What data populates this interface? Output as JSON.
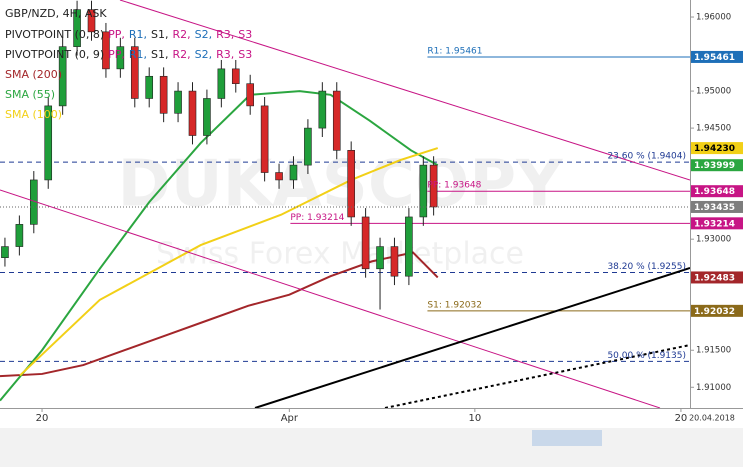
{
  "chart_data": {
    "type": "candlestick",
    "title": "GBP/NZD, 4H, ASK",
    "legend": [
      {
        "label": "PIVOTPOINT (0, 8)",
        "items": [
          {
            "text": "PP,",
            "color": "#c71585"
          },
          {
            "text": "R1,",
            "color": "#1e6fb8"
          },
          {
            "text": "S1,",
            "color": "#222222"
          },
          {
            "text": "R2,",
            "color": "#c71585"
          },
          {
            "text": "S2,",
            "color": "#1e6fb8"
          },
          {
            "text": "R3,",
            "color": "#c71585"
          },
          {
            "text": "S3",
            "color": "#c71585"
          }
        ]
      },
      {
        "label": "PIVOTPOINT (0, 9)",
        "items": [
          {
            "text": "PP,",
            "color": "#c71585"
          },
          {
            "text": "R1,",
            "color": "#1e6fb8"
          },
          {
            "text": "S1,",
            "color": "#222222"
          },
          {
            "text": "R2,",
            "color": "#c71585"
          },
          {
            "text": "S2,",
            "color": "#1e6fb8"
          },
          {
            "text": "R3,",
            "color": "#c71585"
          },
          {
            "text": "S3",
            "color": "#c71585"
          }
        ]
      }
    ],
    "watermark": [
      "DUKASCOPY",
      "Swiss Forex Marketplace"
    ],
    "date_label": "20.04.2018",
    "up_color": "#1f9e3a",
    "down_color": "#d62828",
    "x": [
      17.2,
      17.9,
      18.6,
      19.3,
      20.0,
      20.7,
      21.4,
      22.1,
      22.8,
      23.5,
      24.2,
      24.9,
      25.6,
      26.3,
      27.0,
      27.7,
      28.4,
      29.1,
      29.8,
      30.5,
      31.2,
      31.9,
      32.6,
      33.3,
      34.0,
      34.7,
      35.4,
      36.1,
      36.8,
      37.5,
      38.0
    ],
    "open": [
      1.9275,
      1.929,
      1.932,
      1.938,
      1.948,
      1.956,
      1.961,
      1.958,
      1.953,
      1.956,
      1.949,
      1.952,
      1.947,
      1.95,
      1.944,
      1.949,
      1.953,
      1.951,
      1.948,
      1.939,
      1.938,
      1.94,
      1.945,
      1.95,
      1.942,
      1.933,
      1.926,
      1.929,
      1.925,
      1.933,
      1.94
    ],
    "high": [
      1.9302,
      1.9332,
      1.9392,
      1.9492,
      1.9572,
      1.9622,
      1.9622,
      1.9592,
      1.9572,
      1.9572,
      1.9532,
      1.9532,
      1.9512,
      1.9512,
      1.9502,
      1.9542,
      1.9542,
      1.9522,
      1.9492,
      1.9402,
      1.9412,
      1.9462,
      1.9512,
      1.9512,
      1.9432,
      1.9342,
      1.9302,
      1.9302,
      1.9342,
      1.9412,
      1.9412
    ],
    "low": [
      1.9263,
      1.9278,
      1.9308,
      1.9368,
      1.9468,
      1.9548,
      1.9568,
      1.9518,
      1.9518,
      1.9478,
      1.9478,
      1.9458,
      1.9458,
      1.9428,
      1.9428,
      1.9478,
      1.9498,
      1.9468,
      1.9378,
      1.9368,
      1.9368,
      1.9388,
      1.9438,
      1.9408,
      1.9318,
      1.9248,
      1.9205,
      1.9238,
      1.9238,
      1.9318,
      1.9332
    ],
    "close": [
      1.929,
      1.932,
      1.938,
      1.948,
      1.956,
      1.961,
      1.958,
      1.953,
      1.956,
      1.949,
      1.952,
      1.947,
      1.95,
      1.944,
      1.949,
      1.953,
      1.951,
      1.948,
      1.939,
      1.938,
      1.94,
      1.945,
      1.95,
      1.942,
      1.933,
      1.926,
      1.929,
      1.925,
      1.933,
      1.94,
      1.93435
    ],
    "last_price": {
      "value": 1.93435,
      "label": "1.93435"
    },
    "series": [
      {
        "name": "SMA (200)",
        "color": "#a3262a",
        "x": [
          16.96,
          19,
          21,
          23,
          25,
          27,
          29,
          31,
          33,
          35,
          37,
          38.2
        ],
        "values": [
          1.9115,
          1.9118,
          1.913,
          1.915,
          1.917,
          1.919,
          1.921,
          1.9225,
          1.925,
          1.927,
          1.9282,
          1.92483
        ],
        "tag": "1.92483"
      },
      {
        "name": "SMA (55)",
        "color": "#2ba640",
        "x": [
          16.96,
          19,
          21.8,
          24.2,
          26.7,
          29.1,
          31.5,
          33,
          34.9,
          36.9,
          38.2
        ],
        "values": [
          1.9082,
          1.915,
          1.926,
          1.935,
          1.943,
          1.9495,
          1.95,
          1.9495,
          1.946,
          1.942,
          1.93999
        ],
        "tag": "1.93999"
      },
      {
        "name": "SMA (100)",
        "color": "#f2d017",
        "x": [
          17.93,
          21.8,
          26.7,
          30.6,
          34,
          36.4,
          38.2
        ],
        "values": [
          1.9116,
          1.9218,
          1.9292,
          1.9333,
          1.938,
          1.9407,
          1.9423
        ],
        "tag": "1.94230"
      }
    ],
    "levels": [
      {
        "label": "R1: 1.95461",
        "value": 1.95461,
        "tag": "1.95461",
        "color": "#1e6fb8",
        "from": 37.7,
        "dashed": false
      },
      {
        "label": "PP: 1.93648",
        "value": 1.93648,
        "tag": "1.93648",
        "color": "#c71585",
        "from": 37.7,
        "dashed": false
      },
      {
        "label": "PP: 1.93214",
        "value": 1.93214,
        "tag": "1.93214",
        "color": "#c71585",
        "from": 31.05,
        "dashed": false
      },
      {
        "label": "S1: 1.92032",
        "value": 1.92032,
        "tag": "1.92032",
        "color": "#8b6a1a",
        "from": 37.7,
        "dashed": false
      },
      {
        "label": "23.60 % (1.9404)",
        "value": 1.9404,
        "color": "#1f3a93",
        "dashed": true
      },
      {
        "label": "38.20 % (1.9255)",
        "value": 1.9255,
        "color": "#1f3a93",
        "dashed": true
      },
      {
        "label": "50.00 % (1.9135)",
        "value": 1.9135,
        "color": "#1f3a93",
        "dashed": true
      }
    ],
    "xlim": [
      16.96,
      50.44
    ],
    "xticks": [
      {
        "value": 19,
        "label": "20"
      },
      {
        "value": 31,
        "label": "Apr"
      },
      {
        "value": 40,
        "label": "10"
      },
      {
        "value": 50,
        "label": "20"
      }
    ],
    "ylim": [
      1.9072,
      1.9623
    ],
    "yticks": [
      {
        "value": 1.96,
        "label": "1.96000"
      },
      {
        "value": 1.95,
        "label": "1.95000"
      },
      {
        "value": 1.945,
        "label": "1.94500"
      },
      {
        "value": 1.93,
        "label": "1.93000"
      },
      {
        "value": 1.915,
        "label": "1.91500"
      },
      {
        "value": 1.91,
        "label": "1.91000"
      }
    ]
  }
}
